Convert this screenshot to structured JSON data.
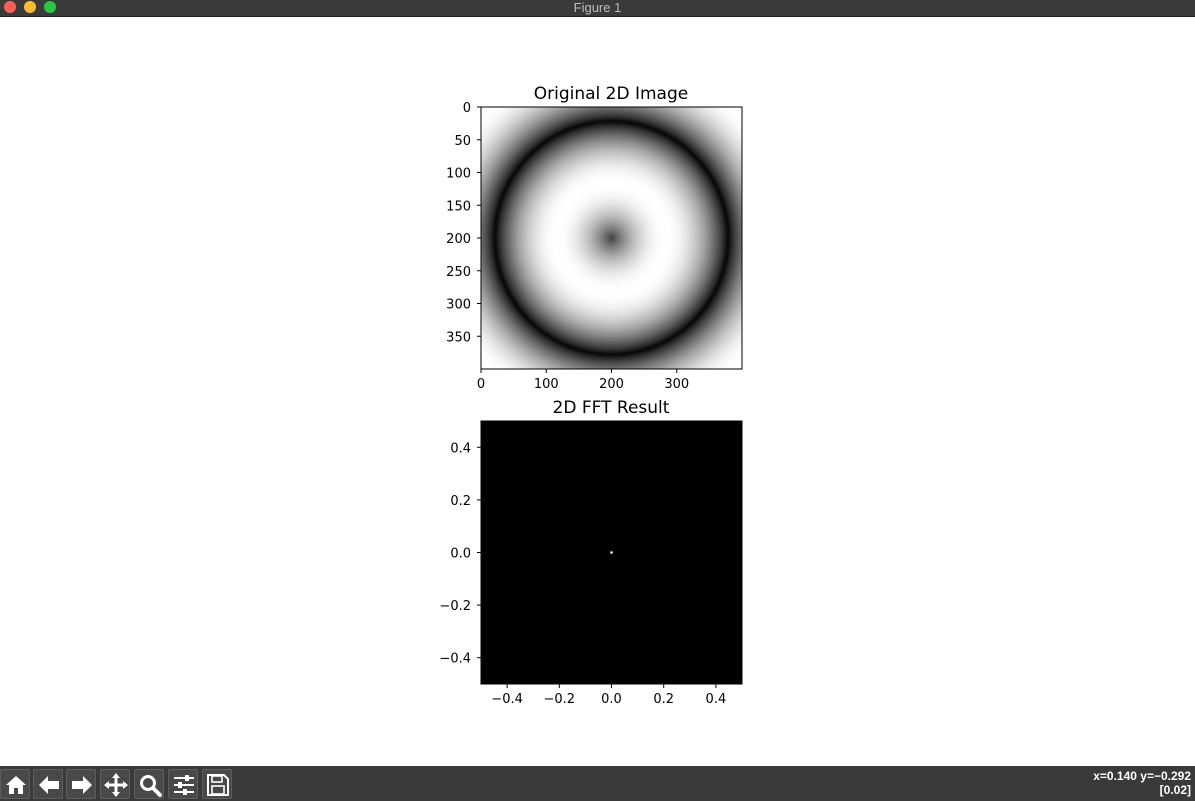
{
  "window": {
    "title": "Figure 1"
  },
  "toolbar": {
    "buttons": [
      {
        "name": "home-icon",
        "label": "Home"
      },
      {
        "name": "back-arrow-icon",
        "label": "Back"
      },
      {
        "name": "forward-arrow-icon",
        "label": "Forward"
      },
      {
        "name": "pan-move-icon",
        "label": "Pan"
      },
      {
        "name": "zoom-magnifier-icon",
        "label": "Zoom"
      },
      {
        "name": "configure-sliders-icon",
        "label": "Configure subplots"
      },
      {
        "name": "save-floppy-icon",
        "label": "Save"
      }
    ]
  },
  "status": {
    "coords": "x=0.140 y=−0.292",
    "value": "[0.02]"
  },
  "chart_data": [
    {
      "type": "heatmap",
      "title": "Original 2D Image",
      "colormap": "gray",
      "x_ticks": [
        "0",
        "100",
        "200",
        "300"
      ],
      "y_ticks": [
        "0",
        "50",
        "100",
        "150",
        "200",
        "250",
        "300",
        "350"
      ],
      "xlim": [
        0,
        400
      ],
      "ylim": [
        400,
        0
      ],
      "image_size": [
        400,
        400
      ],
      "pattern": "radial sine rings centered at (200, 200); bright ring around center, dark ring near edges"
    },
    {
      "type": "heatmap",
      "title": "2D FFT Result",
      "colormap": "gray",
      "x_ticks": [
        "−0.4",
        "−0.2",
        "0.0",
        "0.2",
        "0.4"
      ],
      "y_ticks": [
        "0.4",
        "0.2",
        "0.0",
        "−0.2",
        "−0.4"
      ],
      "xlim": [
        -0.5,
        0.5
      ],
      "ylim": [
        -0.5,
        0.5
      ],
      "pattern": "all black except a single bright point at (0.0, 0.0)",
      "peak": [
        0.0,
        0.0
      ]
    }
  ]
}
